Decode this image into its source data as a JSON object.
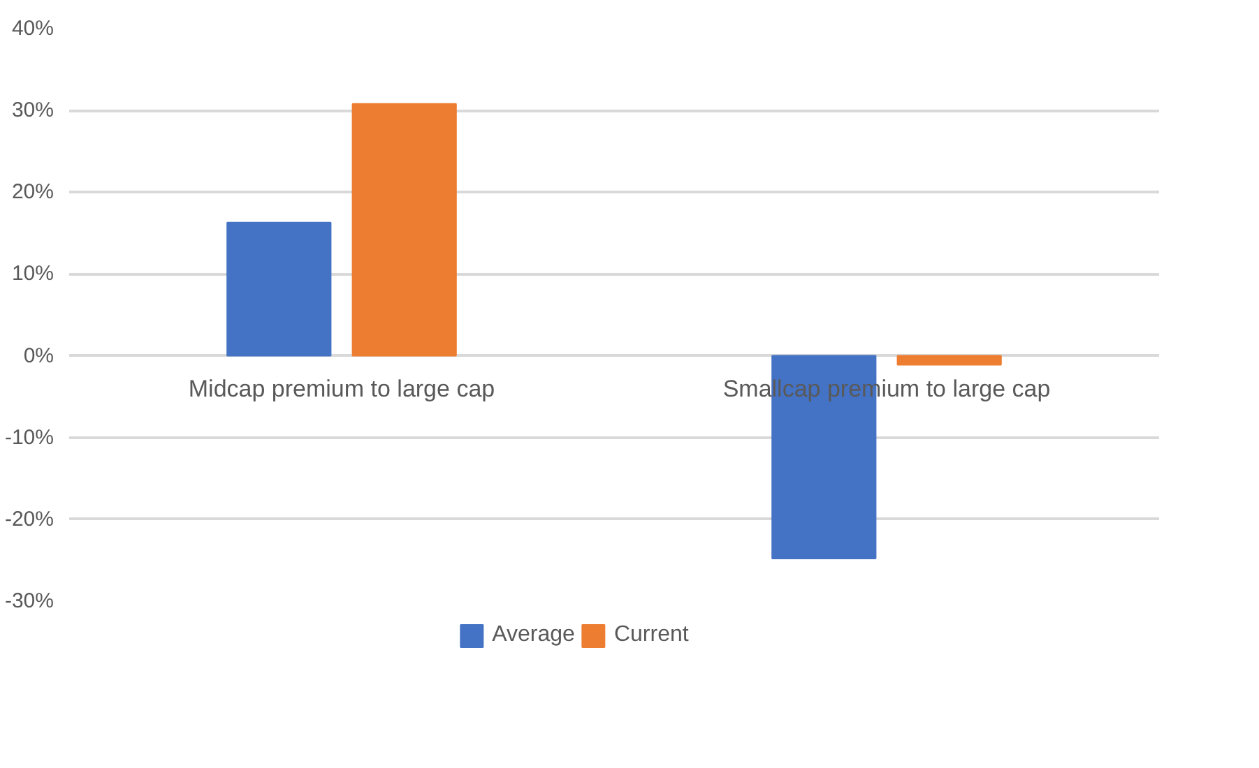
{
  "chart_data": {
    "type": "bar",
    "categories": [
      "Midcap premium to large cap",
      "Smallcap premium to large cap"
    ],
    "series": [
      {
        "name": "Average",
        "color": "#4472c4",
        "values": [
          16.3,
          -24.8
        ]
      },
      {
        "name": "Current",
        "color": "#ed7d31",
        "values": [
          30.8,
          -1.1
        ]
      }
    ],
    "ylim": [
      -30,
      40
    ],
    "yticks": [
      {
        "value": -30,
        "label": "-30%"
      },
      {
        "value": -20,
        "label": "-20%"
      },
      {
        "value": -10,
        "label": "-10%"
      },
      {
        "value": 0,
        "label": "0%"
      },
      {
        "value": 10,
        "label": "10%"
      },
      {
        "value": 20,
        "label": "20%"
      },
      {
        "value": 30,
        "label": "30%"
      },
      {
        "value": 40,
        "label": "40%"
      }
    ],
    "grid": "y",
    "legend": "bottom"
  }
}
